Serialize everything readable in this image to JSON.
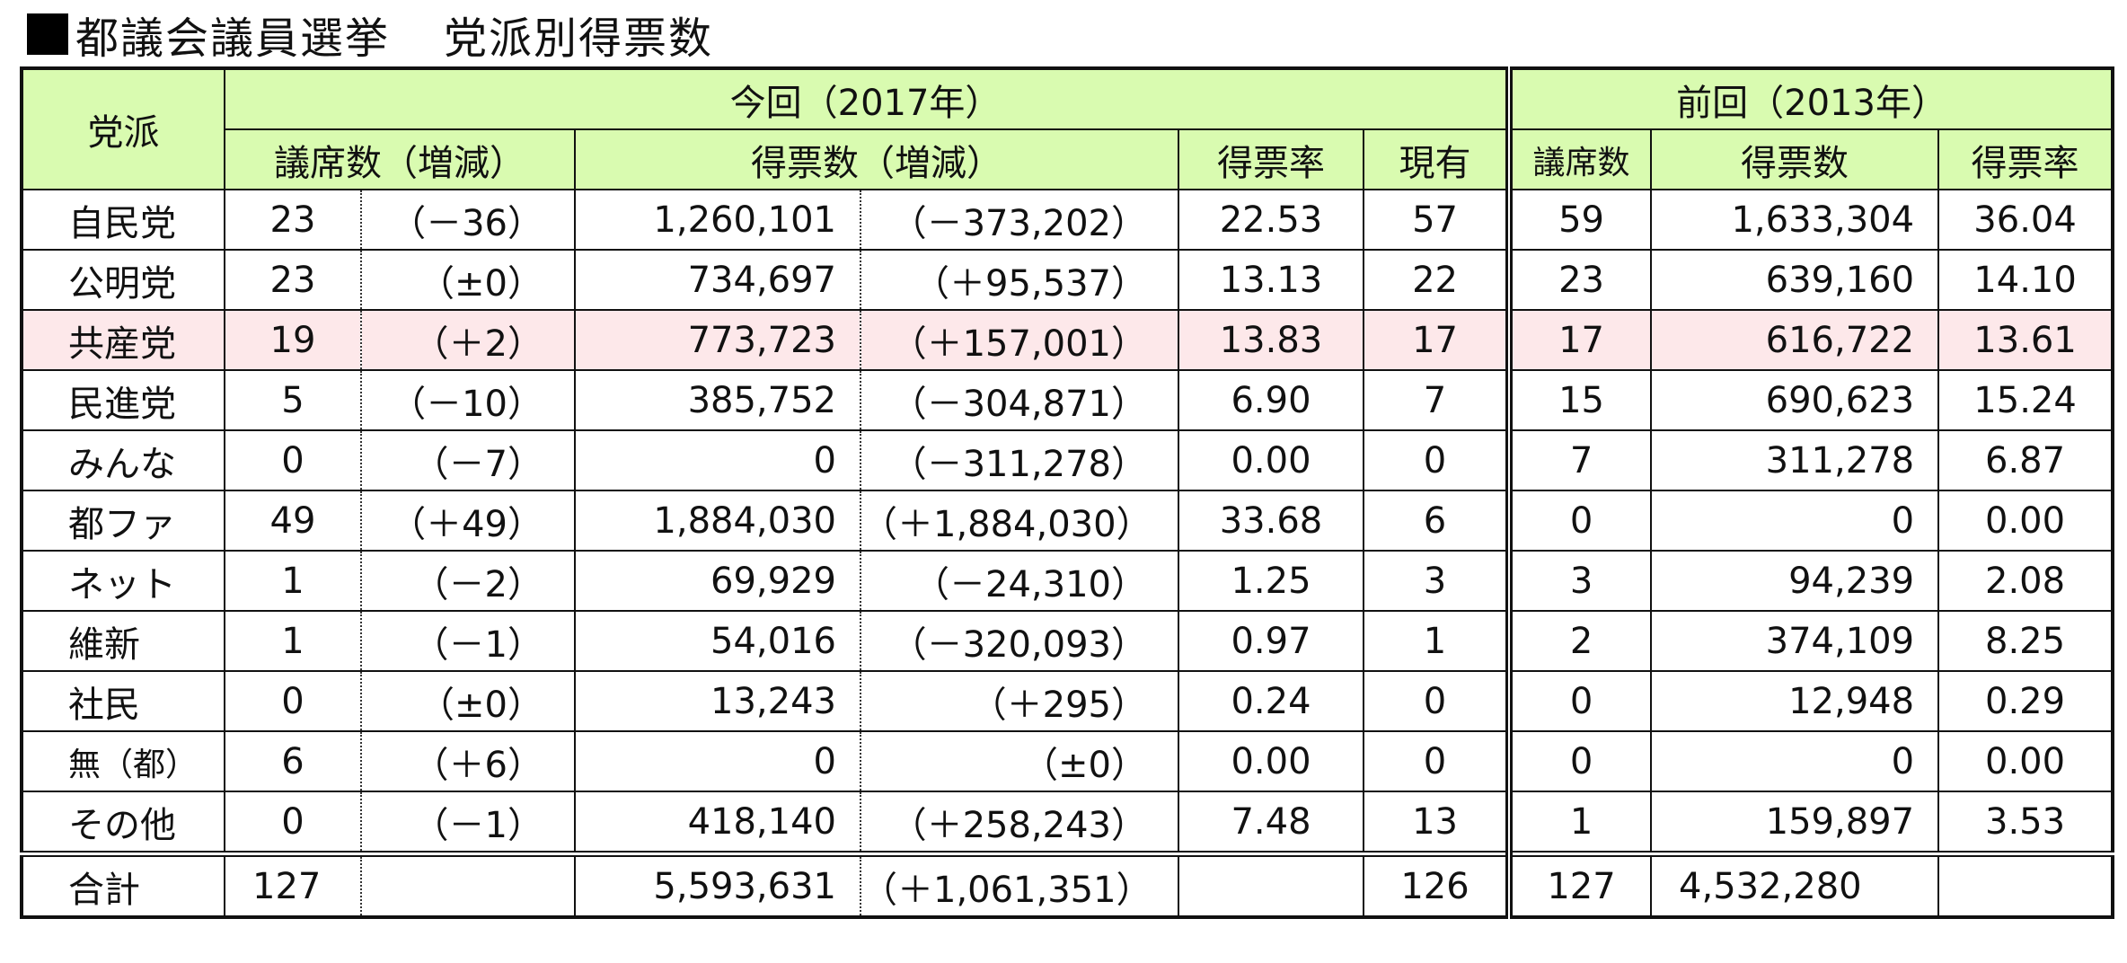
{
  "title": {
    "part1": "都議会議員選挙",
    "part2": "党派別得票数"
  },
  "headers": {
    "party": "党派",
    "current": "今回（2017年）",
    "previous": "前回（2013年）",
    "seats_change": "議席数（増減）",
    "votes_change": "得票数（増減）",
    "vote_rate": "得票率",
    "existing": "現有",
    "prev_seats": "議席数",
    "prev_votes": "得票数",
    "prev_rate": "得票率"
  },
  "rows": [
    {
      "party": "自民党",
      "seats": "23",
      "seats_change": "（－36）",
      "votes": "1,260,101",
      "votes_change": "（－373,202）",
      "rate": "22.53",
      "existing": "57",
      "prev_seats": "59",
      "prev_votes": "1,633,304",
      "prev_rate": "36.04"
    },
    {
      "party": "公明党",
      "seats": "23",
      "seats_change": "（±0）",
      "votes": "734,697",
      "votes_change": "（＋95,537）",
      "rate": "13.13",
      "existing": "22",
      "prev_seats": "23",
      "prev_votes": "639,160",
      "prev_rate": "14.10"
    },
    {
      "party": "共産党",
      "seats": "19",
      "seats_change": "（＋2）",
      "votes": "773,723",
      "votes_change": "（＋157,001）",
      "rate": "13.83",
      "existing": "17",
      "prev_seats": "17",
      "prev_votes": "616,722",
      "prev_rate": "13.61"
    },
    {
      "party": "民進党",
      "seats": "5",
      "seats_change": "（－10）",
      "votes": "385,752",
      "votes_change": "（－304,871）",
      "rate": "6.90",
      "existing": "7",
      "prev_seats": "15",
      "prev_votes": "690,623",
      "prev_rate": "15.24"
    },
    {
      "party": "みんな",
      "seats": "0",
      "seats_change": "（－7）",
      "votes": "0",
      "votes_change": "（－311,278）",
      "rate": "0.00",
      "existing": "0",
      "prev_seats": "7",
      "prev_votes": "311,278",
      "prev_rate": "6.87"
    },
    {
      "party": "都ファ",
      "seats": "49",
      "seats_change": "（＋49）",
      "votes": "1,884,030",
      "votes_change": "（＋1,884,030）",
      "rate": "33.68",
      "existing": "6",
      "prev_seats": "0",
      "prev_votes": "0",
      "prev_rate": "0.00"
    },
    {
      "party": "ネット",
      "seats": "1",
      "seats_change": "（－2）",
      "votes": "69,929",
      "votes_change": "（－24,310）",
      "rate": "1.25",
      "existing": "3",
      "prev_seats": "3",
      "prev_votes": "94,239",
      "prev_rate": "2.08"
    },
    {
      "party": "維新",
      "seats": "1",
      "seats_change": "（－1）",
      "votes": "54,016",
      "votes_change": "（－320,093）",
      "rate": "0.97",
      "existing": "1",
      "prev_seats": "2",
      "prev_votes": "374,109",
      "prev_rate": "8.25"
    },
    {
      "party": "社民",
      "seats": "0",
      "seats_change": "（±0）",
      "votes": "13,243",
      "votes_change": "（＋295）",
      "rate": "0.24",
      "existing": "0",
      "prev_seats": "0",
      "prev_votes": "12,948",
      "prev_rate": "0.29"
    },
    {
      "party": "無（都）",
      "seats": "6",
      "seats_change": "（＋6）",
      "votes": "0",
      "votes_change": "（±0）",
      "rate": "0.00",
      "existing": "0",
      "prev_seats": "0",
      "prev_votes": "0",
      "prev_rate": "0.00"
    },
    {
      "party": "その他",
      "seats": "0",
      "seats_change": "（－1）",
      "votes": "418,140",
      "votes_change": "（＋258,243）",
      "rate": "7.48",
      "existing": "13",
      "prev_seats": "1",
      "prev_votes": "159,897",
      "prev_rate": "3.53"
    }
  ],
  "total": {
    "party": "合計",
    "seats": "127",
    "votes": "5,593,631",
    "votes_change": "（＋1,061,351）",
    "existing": "126",
    "prev_seats": "127",
    "prev_votes": "4,532,280"
  },
  "highlight_color": "#fde8ea",
  "header_color": "#d9fbb0"
}
